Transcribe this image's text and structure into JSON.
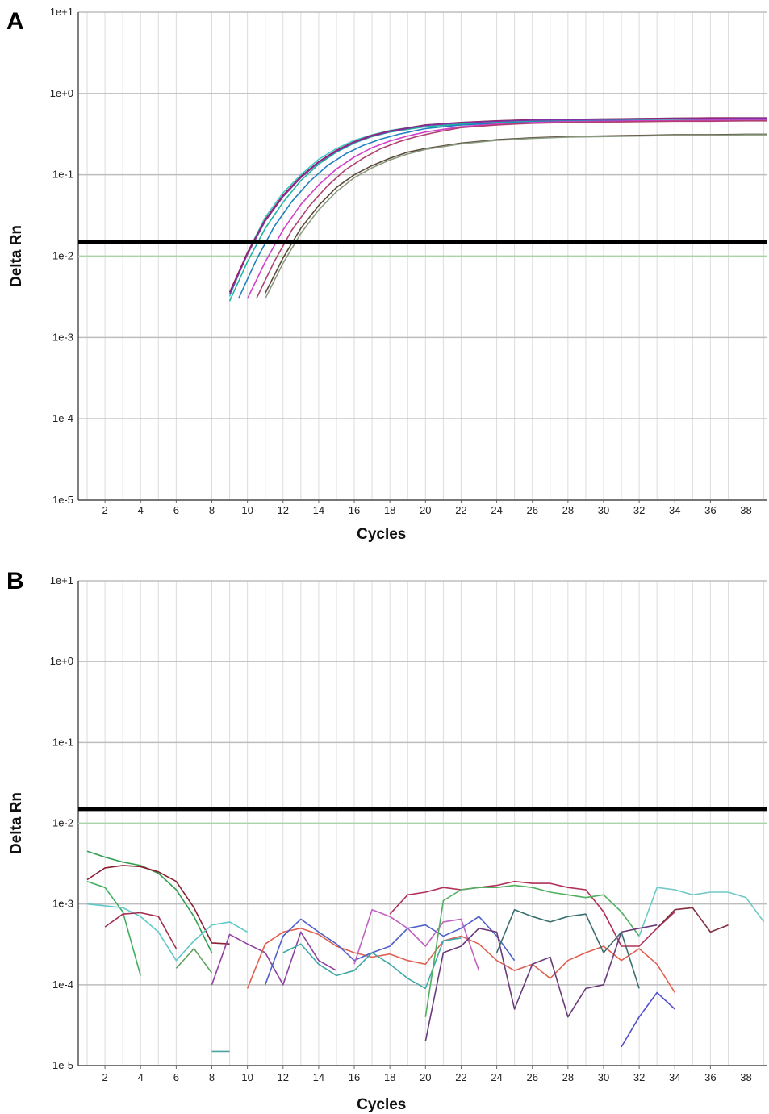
{
  "chart_data": [
    {
      "type": "line",
      "panel_label": "A",
      "ylabel": "Delta Rn",
      "xlabel": "Cycles",
      "y_scale": "log",
      "ylim": [
        1e-05,
        10
      ],
      "y_ticks": [
        "1e+1",
        "1e+0",
        "1e-1",
        "1e-2",
        "1e-3",
        "1e-4",
        "1e-5"
      ],
      "x_ticks": [
        "2",
        "4",
        "6",
        "8",
        "10",
        "12",
        "14",
        "16",
        "18",
        "20",
        "22",
        "24",
        "26",
        "28",
        "30",
        "32",
        "34",
        "36",
        "38"
      ],
      "xlim": [
        0.5,
        39.2
      ],
      "grid": true,
      "threshold": 0.015,
      "baseline_line": 0.01,
      "series": [
        {
          "color": "#1fb5a0",
          "x": [
            9,
            10,
            11,
            12,
            13,
            14,
            15,
            16,
            17,
            18,
            20,
            22,
            24,
            26,
            28,
            30,
            32,
            34,
            36,
            38,
            39.2
          ],
          "y": [
            0.0028,
            0.0085,
            0.022,
            0.046,
            0.085,
            0.135,
            0.19,
            0.245,
            0.295,
            0.335,
            0.39,
            0.42,
            0.44,
            0.455,
            0.46,
            0.465,
            0.47,
            0.47,
            0.475,
            0.48,
            0.48
          ]
        },
        {
          "color": "#40c8c8",
          "x": [
            9,
            10,
            11,
            12,
            13,
            14,
            15,
            16,
            17,
            18,
            20,
            22,
            24,
            26,
            28,
            30,
            32,
            34,
            36,
            38,
            39.2
          ],
          "y": [
            0.0032,
            0.011,
            0.03,
            0.06,
            0.1,
            0.155,
            0.21,
            0.265,
            0.31,
            0.35,
            0.41,
            0.44,
            0.46,
            0.475,
            0.48,
            0.485,
            0.49,
            0.495,
            0.5,
            0.5,
            0.5
          ]
        },
        {
          "color": "#a01850",
          "x": [
            9,
            10,
            11,
            12,
            13,
            14,
            15,
            16,
            17,
            18,
            20,
            22,
            24,
            26,
            28,
            30,
            32,
            34,
            36,
            38,
            39.2
          ],
          "y": [
            0.0036,
            0.011,
            0.028,
            0.056,
            0.095,
            0.145,
            0.2,
            0.255,
            0.305,
            0.345,
            0.41,
            0.44,
            0.46,
            0.475,
            0.48,
            0.485,
            0.49,
            0.495,
            0.5,
            0.5,
            0.5
          ]
        },
        {
          "color": "#8030a0",
          "x": [
            9,
            10,
            11,
            12,
            13,
            14,
            15,
            16,
            17,
            18,
            20,
            22,
            24,
            26,
            28,
            30,
            32,
            34,
            36,
            38,
            39.2
          ],
          "y": [
            0.0034,
            0.0105,
            0.027,
            0.054,
            0.092,
            0.142,
            0.195,
            0.25,
            0.3,
            0.34,
            0.405,
            0.435,
            0.455,
            0.47,
            0.475,
            0.48,
            0.485,
            0.49,
            0.49,
            0.495,
            0.495
          ]
        },
        {
          "color": "#2080c0",
          "x": [
            9.5,
            10.5,
            11.5,
            12.5,
            13.5,
            14.5,
            15.5,
            16.5,
            17.5,
            18.5,
            20,
            22,
            24,
            26,
            28,
            30,
            32,
            34,
            36,
            38,
            39.2
          ],
          "y": [
            0.003,
            0.009,
            0.023,
            0.047,
            0.083,
            0.13,
            0.18,
            0.23,
            0.275,
            0.315,
            0.37,
            0.41,
            0.43,
            0.445,
            0.455,
            0.46,
            0.465,
            0.465,
            0.47,
            0.47,
            0.47
          ]
        },
        {
          "color": "#d040c8",
          "x": [
            10,
            11,
            12,
            13,
            14,
            15,
            16,
            17,
            18,
            19,
            20,
            22,
            24,
            26,
            28,
            30,
            32,
            34,
            36,
            38,
            39.2
          ],
          "y": [
            0.003,
            0.0085,
            0.021,
            0.043,
            0.075,
            0.118,
            0.165,
            0.215,
            0.26,
            0.3,
            0.335,
            0.39,
            0.42,
            0.44,
            0.45,
            0.455,
            0.46,
            0.465,
            0.47,
            0.47,
            0.47
          ]
        },
        {
          "color": "#b04070",
          "x": [
            10.5,
            11.5,
            12.5,
            13.5,
            14.5,
            15.5,
            16.5,
            17.5,
            18.5,
            19.5,
            20.5,
            22,
            24,
            26,
            28,
            30,
            32,
            34,
            36,
            38,
            39.2
          ],
          "y": [
            0.003,
            0.0085,
            0.021,
            0.042,
            0.073,
            0.115,
            0.16,
            0.21,
            0.255,
            0.295,
            0.33,
            0.38,
            0.41,
            0.43,
            0.44,
            0.445,
            0.45,
            0.455,
            0.455,
            0.46,
            0.46
          ]
        },
        {
          "color": "#5a4a3a",
          "x": [
            11,
            12,
            13,
            14,
            15,
            16,
            17,
            18,
            19,
            20,
            22,
            24,
            26,
            28,
            30,
            32,
            34,
            36,
            38,
            39.2
          ],
          "y": [
            0.0035,
            0.0095,
            0.022,
            0.042,
            0.07,
            0.1,
            0.13,
            0.16,
            0.19,
            0.21,
            0.245,
            0.27,
            0.285,
            0.295,
            0.3,
            0.305,
            0.31,
            0.31,
            0.315,
            0.315
          ]
        },
        {
          "color": "#8a9a80",
          "x": [
            11,
            12,
            13,
            14,
            15,
            16,
            17,
            18,
            19,
            20,
            22,
            24,
            26,
            28,
            30,
            32,
            34,
            36,
            38,
            39.2
          ],
          "y": [
            0.003,
            0.0082,
            0.019,
            0.037,
            0.062,
            0.092,
            0.122,
            0.152,
            0.18,
            0.205,
            0.24,
            0.265,
            0.28,
            0.29,
            0.295,
            0.3,
            0.305,
            0.305,
            0.31,
            0.31
          ]
        }
      ]
    },
    {
      "type": "line",
      "panel_label": "B",
      "ylabel": "Delta Rn",
      "xlabel": "Cycles",
      "y_scale": "log",
      "ylim": [
        1e-05,
        10
      ],
      "y_ticks": [
        "1e+1",
        "1e+0",
        "1e-1",
        "1e-2",
        "1e-3",
        "1e-4",
        "1e-5"
      ],
      "x_ticks": [
        "2",
        "4",
        "6",
        "8",
        "10",
        "12",
        "14",
        "16",
        "18",
        "20",
        "22",
        "24",
        "26",
        "28",
        "30",
        "32",
        "34",
        "36",
        "38"
      ],
      "xlim": [
        0.5,
        39.2
      ],
      "grid": true,
      "threshold": 0.015,
      "baseline_line": 0.01,
      "series": [
        {
          "color": "#30a050",
          "x": [
            1,
            2,
            3,
            4,
            5,
            6,
            7,
            8
          ],
          "y": [
            0.0045,
            0.0038,
            0.0033,
            0.003,
            0.0024,
            0.0015,
            0.0007,
            0.00025
          ]
        },
        {
          "color": "#8a2030",
          "x": [
            1,
            2,
            3,
            4,
            5,
            6,
            7,
            8,
            9
          ],
          "y": [
            0.002,
            0.0028,
            0.003,
            0.0029,
            0.0025,
            0.0019,
            0.0009,
            0.00033,
            0.00032
          ]
        },
        {
          "color": "#40b060",
          "x": [
            1,
            2,
            3,
            4
          ],
          "y": [
            0.0019,
            0.0016,
            0.0008,
            0.00013
          ]
        },
        {
          "color": "#60c8c8",
          "x": [
            1,
            2,
            3,
            4,
            5,
            6,
            7,
            8,
            9,
            10
          ],
          "y": [
            0.001,
            0.00095,
            0.0009,
            0.0007,
            0.00045,
            0.0002,
            0.00035,
            0.00055,
            0.0006,
            0.00045
          ]
        },
        {
          "color": "#a03050",
          "x": [
            2,
            3,
            4,
            5,
            6
          ],
          "y": [
            0.00052,
            0.00075,
            0.00078,
            0.0007,
            0.00028
          ]
        },
        {
          "color": "#60a060",
          "x": [
            6,
            7,
            8
          ],
          "y": [
            0.00016,
            0.00028,
            0.00014
          ]
        },
        {
          "color": "#9040a0",
          "x": [
            8,
            9,
            10,
            11,
            12,
            13,
            14,
            15
          ],
          "y": [
            0.0001,
            0.00042,
            0.00032,
            0.00025,
            0.0001,
            0.00045,
            0.0002,
            0.00015
          ]
        },
        {
          "color": "#e06050",
          "x": [
            10,
            11,
            12,
            13,
            14,
            15,
            16,
            17,
            18,
            19,
            20,
            21,
            22,
            23,
            24,
            25,
            26,
            27,
            28,
            29,
            30,
            31,
            32,
            33,
            34
          ],
          "y": [
            9e-05,
            0.00032,
            0.00045,
            0.0005,
            0.00042,
            0.0003,
            0.00025,
            0.00022,
            0.00024,
            0.0002,
            0.00018,
            0.00035,
            0.0004,
            0.00032,
            0.0002,
            0.00015,
            0.00018,
            0.00012,
            0.0002,
            0.00025,
            0.0003,
            0.0002,
            0.00028,
            0.00018,
            8e-05
          ]
        },
        {
          "color": "#5060c8",
          "x": [
            11,
            12,
            13,
            14,
            15,
            16,
            17,
            18,
            19,
            20,
            21,
            22,
            23,
            24,
            25
          ],
          "y": [
            0.0001,
            0.0004,
            0.00065,
            0.00045,
            0.00032,
            0.0002,
            0.00025,
            0.0003,
            0.0005,
            0.00055,
            0.0004,
            0.0005,
            0.0007,
            0.0004,
            0.0002
          ]
        },
        {
          "color": "#40a8a8",
          "x": [
            12,
            13,
            14,
            15,
            16,
            17,
            18,
            19,
            20,
            21,
            22
          ],
          "y": [
            0.00025,
            0.00032,
            0.00018,
            0.00013,
            0.00015,
            0.00025,
            0.00018,
            0.00012,
            9e-05,
            0.00035,
            0.00038
          ]
        },
        {
          "color": "#c060c0",
          "x": [
            16,
            17,
            18,
            19,
            20,
            21,
            22,
            23
          ],
          "y": [
            0.00018,
            0.00085,
            0.0007,
            0.0005,
            0.0003,
            0.0006,
            0.00065,
            0.00015
          ]
        },
        {
          "color": "#b03058",
          "x": [
            18,
            19,
            20,
            21,
            22,
            23,
            24,
            25,
            26,
            27,
            28,
            29,
            30,
            31,
            32,
            33,
            34
          ],
          "y": [
            0.00075,
            0.0013,
            0.0014,
            0.0016,
            0.0015,
            0.0016,
            0.0017,
            0.0019,
            0.0018,
            0.0018,
            0.0016,
            0.0015,
            0.0008,
            0.0003,
            0.0003,
            0.0005,
            0.0008
          ]
        },
        {
          "color": "#50b060",
          "x": [
            20,
            21,
            22,
            23,
            24,
            25,
            26,
            27,
            28,
            29,
            30,
            31,
            32
          ],
          "y": [
            4e-05,
            0.0011,
            0.0015,
            0.0016,
            0.0016,
            0.0017,
            0.0016,
            0.0014,
            0.0013,
            0.0012,
            0.0013,
            0.0008,
            0.0004
          ]
        },
        {
          "color": "#70c8c8",
          "x": [
            32,
            33,
            34,
            35,
            36,
            37,
            38,
            39
          ],
          "y": [
            0.0004,
            0.0016,
            0.0015,
            0.0013,
            0.0014,
            0.0014,
            0.0012,
            0.0006
          ]
        },
        {
          "color": "#803040",
          "x": [
            33,
            34,
            35,
            36,
            37
          ],
          "y": [
            0.0005,
            0.00085,
            0.0009,
            0.00045,
            0.00055
          ]
        },
        {
          "color": "#6a3a7a",
          "x": [
            20,
            21,
            22,
            23,
            24,
            25,
            26,
            27,
            28,
            29,
            30,
            31,
            32,
            33
          ],
          "y": [
            2e-05,
            0.00025,
            0.0003,
            0.0005,
            0.00045,
            5e-05,
            0.00018,
            0.00022,
            4e-05,
            9e-05,
            0.0001,
            0.00045,
            0.0005,
            0.00055
          ]
        },
        {
          "color": "#3a7070",
          "x": [
            24,
            25,
            26,
            27,
            28,
            29,
            30,
            31,
            32
          ],
          "y": [
            0.00025,
            0.00085,
            0.0007,
            0.0006,
            0.0007,
            0.00075,
            0.00025,
            0.00045,
            9e-05
          ]
        },
        {
          "color": "#5050d0",
          "x": [
            31,
            32,
            33,
            34
          ],
          "y": [
            1.7e-05,
            4e-05,
            8e-05,
            5e-05
          ]
        },
        {
          "color": "#50a0a0",
          "x": [
            8,
            9
          ],
          "y": [
            1.5e-05,
            1.5e-05
          ]
        }
      ]
    }
  ]
}
